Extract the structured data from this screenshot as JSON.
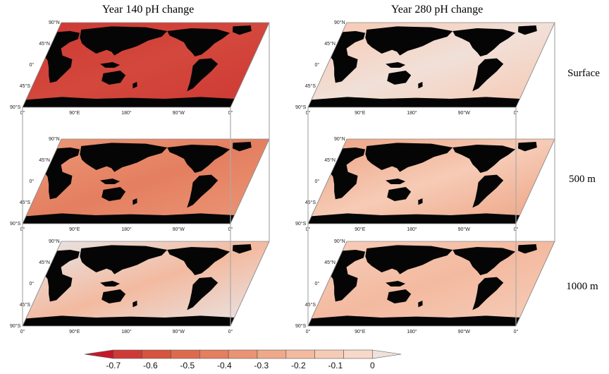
{
  "columns": [
    {
      "title": "Year 140 pH change"
    },
    {
      "title": "Year 280 pH change"
    }
  ],
  "depths": [
    "Surface",
    "500 m",
    "1000 m"
  ],
  "lat_ticks": [
    "90°N",
    "45°N",
    "0°",
    "45°S",
    "90°S"
  ],
  "lon_ticks": [
    "0°",
    "90°E",
    "180°",
    "90°W",
    "0°"
  ],
  "colorbar": {
    "labels": [
      "-0.7",
      "-0.6",
      "-0.5",
      "-0.4",
      "-0.3",
      "-0.2",
      "-0.1",
      "0"
    ],
    "colors": [
      "#c6162c",
      "#cf3a36",
      "#d6543f",
      "#de6a4d",
      "#e47f60",
      "#ea9474",
      "#efa88a",
      "#f3baa0",
      "#f6cbb6",
      "#f7d8c9",
      "#efe2dc"
    ],
    "extend": "both"
  },
  "panels": [
    {
      "column": 0,
      "depth": "Surface",
      "ocean": "#d3483c",
      "ocean_alt": "#cf3a36"
    },
    {
      "column": 0,
      "depth": "500 m",
      "ocean": "#e47f60",
      "ocean_alt": "#ea9474"
    },
    {
      "column": 0,
      "depth": "1000 m",
      "ocean": "#f3baa0",
      "ocean_alt": "#e9e1df"
    },
    {
      "column": 1,
      "depth": "Surface",
      "ocean": "#f1e0d8",
      "ocean_alt": "#f6cbb6"
    },
    {
      "column": 1,
      "depth": "500 m",
      "ocean": "#f6cbb6",
      "ocean_alt": "#efa88a"
    },
    {
      "column": 1,
      "depth": "1000 m",
      "ocean": "#f3baa0",
      "ocean_alt": "#f6cbb6"
    }
  ]
}
